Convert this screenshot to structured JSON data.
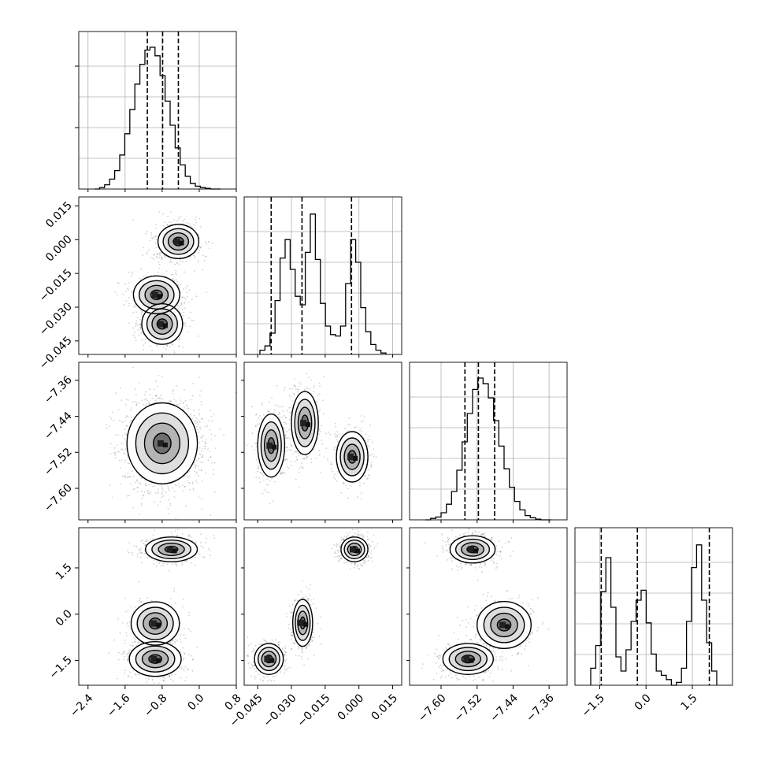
{
  "chart_data": {
    "type": "corner",
    "parameters": [
      {
        "index": 0,
        "range": [
          -2.6,
          0.8
        ],
        "ticks": [
          "−2.4",
          "−1.6",
          "−0.8",
          "0.0",
          "0.8"
        ],
        "tick_values": [
          -2.4,
          -1.6,
          -0.8,
          0.0,
          0.8
        ]
      },
      {
        "index": 1,
        "range": [
          -0.051,
          0.019
        ],
        "ticks": [
          "−0.045",
          "−0.030",
          "−0.015",
          "0.000",
          "0.015"
        ],
        "tick_values": [
          -0.045,
          -0.03,
          -0.015,
          0.0,
          0.015
        ]
      },
      {
        "index": 2,
        "range": [
          -7.67,
          -7.32
        ],
        "ticks": [
          "−7.60",
          "−7.52",
          "−7.44",
          "−7.36"
        ],
        "tick_values": [
          -7.6,
          -7.52,
          -7.44,
          -7.36
        ]
      },
      {
        "index": 3,
        "range": [
          -2.3,
          2.8
        ],
        "ticks": [
          "−1.5",
          "0.0",
          "1.5"
        ],
        "tick_values": [
          -1.5,
          0.0,
          1.5
        ]
      }
    ],
    "quantiles": [
      [
        -1.12,
        -0.79,
        -0.45
      ],
      [
        -0.039,
        -0.0253,
        -0.0033
      ],
      [
        -7.547,
        -7.517,
        -7.481
      ],
      [
        -1.45,
        -0.28,
        2.05
      ]
    ],
    "histograms": [
      {
        "counts": [
          0,
          0.01,
          0.03,
          0.07,
          0.13,
          0.24,
          0.39,
          0.56,
          0.74,
          0.88,
          0.98,
          1.0,
          0.94,
          0.8,
          0.62,
          0.45,
          0.29,
          0.17,
          0.09,
          0.04,
          0.02,
          0.01,
          0.005,
          0,
          0
        ]
      },
      {
        "counts": [
          0.03,
          0.06,
          0.15,
          0.38,
          0.68,
          0.81,
          0.6,
          0.41,
          0.35,
          0.72,
          0.99,
          0.67,
          0.36,
          0.2,
          0.14,
          0.13,
          0.2,
          0.5,
          0.81,
          0.65,
          0.33,
          0.16,
          0.07,
          0.03,
          0.01
        ]
      },
      {
        "counts": [
          0,
          0.01,
          0.02,
          0.05,
          0.11,
          0.2,
          0.35,
          0.55,
          0.75,
          0.92,
          1.0,
          0.96,
          0.86,
          0.7,
          0.52,
          0.36,
          0.23,
          0.13,
          0.07,
          0.03,
          0.015,
          0.005,
          0,
          0
        ]
      },
      {
        "counts": [
          0.12,
          0.28,
          0.66,
          0.9,
          0.55,
          0.2,
          0.1,
          0.25,
          0.45,
          0.6,
          0.67,
          0.44,
          0.22,
          0.1,
          0.07,
          0.04,
          0.0,
          0.02,
          0.12,
          0.45,
          0.83,
          0.99,
          0.6,
          0.3,
          0.1
        ]
      }
    ],
    "panels": [
      {
        "row": 1,
        "col": 0,
        "modes": [
          {
            "x": -0.45,
            "y": -0.0008,
            "sx": 0.22,
            "sy": 0.0038,
            "w": 0.45
          },
          {
            "x": -0.92,
            "y": -0.0245,
            "sx": 0.25,
            "sy": 0.0042,
            "w": 0.35
          },
          {
            "x": -0.8,
            "y": -0.0375,
            "sx": 0.22,
            "sy": 0.0045,
            "w": 0.32
          }
        ]
      },
      {
        "row": 2,
        "col": 0,
        "modes": [
          {
            "x": -0.8,
            "y": -7.5,
            "sx": 0.38,
            "sy": 0.045,
            "w": 1.0
          }
        ]
      },
      {
        "row": 2,
        "col": 1,
        "modes": [
          {
            "x": -0.039,
            "y": -7.505,
            "sx": 0.003,
            "sy": 0.035,
            "w": 0.35
          },
          {
            "x": -0.024,
            "y": -7.455,
            "sx": 0.003,
            "sy": 0.035,
            "w": 0.4
          },
          {
            "x": -0.003,
            "y": -7.53,
            "sx": 0.0035,
            "sy": 0.028,
            "w": 0.3
          }
        ]
      },
      {
        "row": 3,
        "col": 0,
        "modes": [
          {
            "x": -0.6,
            "y": 2.1,
            "sx": 0.28,
            "sy": 0.2,
            "w": 0.42
          },
          {
            "x": -0.95,
            "y": -0.3,
            "sx": 0.26,
            "sy": 0.35,
            "w": 0.3
          },
          {
            "x": -0.95,
            "y": -1.45,
            "sx": 0.28,
            "sy": 0.28,
            "w": 0.45
          }
        ]
      },
      {
        "row": 3,
        "col": 1,
        "modes": [
          {
            "x": -0.002,
            "y": 2.1,
            "sx": 0.003,
            "sy": 0.2,
            "w": 0.45
          },
          {
            "x": -0.025,
            "y": -0.28,
            "sx": 0.0022,
            "sy": 0.38,
            "w": 0.33
          },
          {
            "x": -0.04,
            "y": -1.45,
            "sx": 0.0032,
            "sy": 0.25,
            "w": 0.35
          }
        ]
      },
      {
        "row": 3,
        "col": 2,
        "modes": [
          {
            "x": -7.53,
            "y": 2.1,
            "sx": 0.025,
            "sy": 0.22,
            "w": 0.42
          },
          {
            "x": -7.46,
            "y": -0.35,
            "sx": 0.03,
            "sy": 0.38,
            "w": 0.3
          },
          {
            "x": -7.54,
            "y": -1.45,
            "sx": 0.028,
            "sy": 0.25,
            "w": 0.35
          }
        ]
      }
    ]
  }
}
